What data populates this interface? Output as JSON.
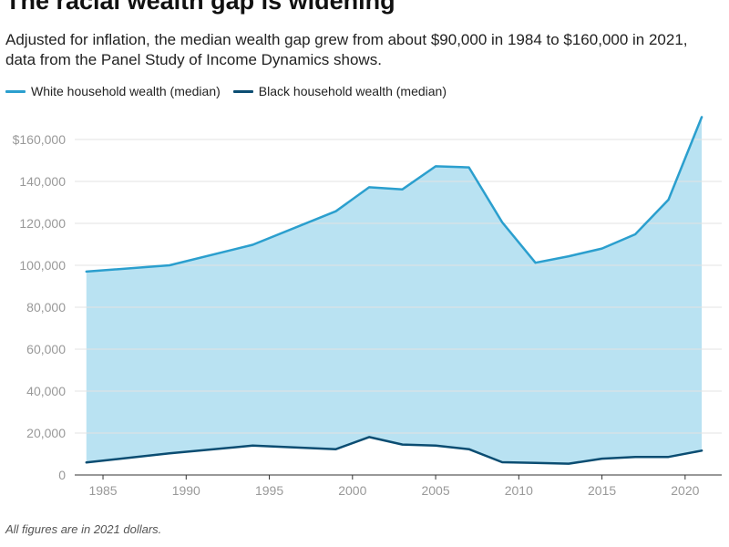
{
  "header": {
    "title": "The racial wealth gap is widening",
    "subtitle": "Adjusted for inflation, the median wealth gap grew from about $90,000 in 1984 to $160,000 in 2021, data from the Panel Study of Income Dynamics shows."
  },
  "footer": {
    "note": "All figures are in 2021 dollars."
  },
  "colors": {
    "white_series": "#2b9fce",
    "black_series": "#0b4d72",
    "gap_fill": "#b9e2f2",
    "grid": "#e3e3e3"
  },
  "chart_data": {
    "type": "area",
    "title": "The racial wealth gap is widening",
    "subtitle": "Adjusted for inflation, the median wealth gap grew from about $90,000 in 1984 to $160,000 in 2021, data from the Panel Study of Income Dynamics shows.",
    "xlabel": "",
    "ylabel": "",
    "xlim": [
      1983.3,
      2022.2
    ],
    "ylim": [
      0,
      170000
    ],
    "grid": true,
    "legend_position": "top-left",
    "x_ticks": [
      "1985",
      "1990",
      "1995",
      "2000",
      "2005",
      "2010",
      "2015",
      "2020"
    ],
    "y_ticks": [
      "0",
      "20,000",
      "40,000",
      "60,000",
      "80,000",
      "100,000",
      "120,000",
      "140,000",
      "$160,000"
    ],
    "y_tick_values": [
      0,
      20000,
      40000,
      60000,
      80000,
      100000,
      120000,
      140000,
      160000
    ],
    "x_tick_values": [
      1985,
      1990,
      1995,
      2000,
      2005,
      2010,
      2015,
      2020
    ],
    "x": [
      1984,
      1989,
      1994,
      1999,
      2001,
      2003,
      2005,
      2007,
      2009,
      2011,
      2013,
      2015,
      2017,
      2019,
      2021
    ],
    "series": [
      {
        "name": "White household wealth (median)",
        "values": [
          97000,
          100000,
          109800,
          125800,
          137200,
          136200,
          147200,
          146700,
          120500,
          101200,
          104300,
          108000,
          114800,
          131300,
          170700
        ]
      },
      {
        "name": "Black household wealth (median)",
        "values": [
          6000,
          10300,
          14000,
          12300,
          18100,
          14500,
          14000,
          12300,
          6100,
          5800,
          5400,
          7800,
          8600,
          8600,
          11600
        ]
      }
    ],
    "annotations": [
      "All figures are in 2021 dollars."
    ]
  }
}
